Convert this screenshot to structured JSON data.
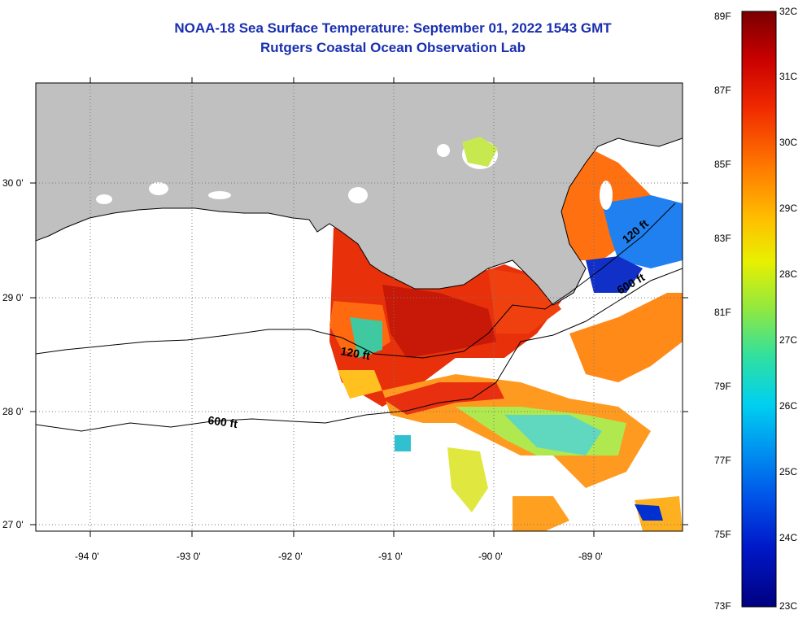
{
  "title_line1": "NOAA-18 Sea Surface Temperature:  September 01, 2022 1543 GMT",
  "title_line2": "Rutgers Coastal Ocean Observation Lab",
  "lon_labels": [
    "-94 0'",
    "-93 0'",
    "-92 0'",
    "-91 0'",
    "-90 0'",
    "-89 0'"
  ],
  "lat_labels": [
    "30 0'",
    "29 0'",
    "28 0'",
    "27 0'"
  ],
  "contour_labels": [
    "120 ft",
    "600 ft",
    "120 ft",
    "600 ft"
  ],
  "colorbar": {
    "fahrenheit": [
      "89F",
      "87F",
      "85F",
      "83F",
      "81F",
      "79F",
      "77F",
      "75F",
      "73F"
    ],
    "celsius": [
      "32C",
      "31C",
      "30C",
      "29C",
      "28C",
      "27C",
      "26C",
      "25C",
      "24C",
      "23C"
    ]
  },
  "colors": {
    "land": "#c0c0c0",
    "title": "#1a2fb0"
  }
}
